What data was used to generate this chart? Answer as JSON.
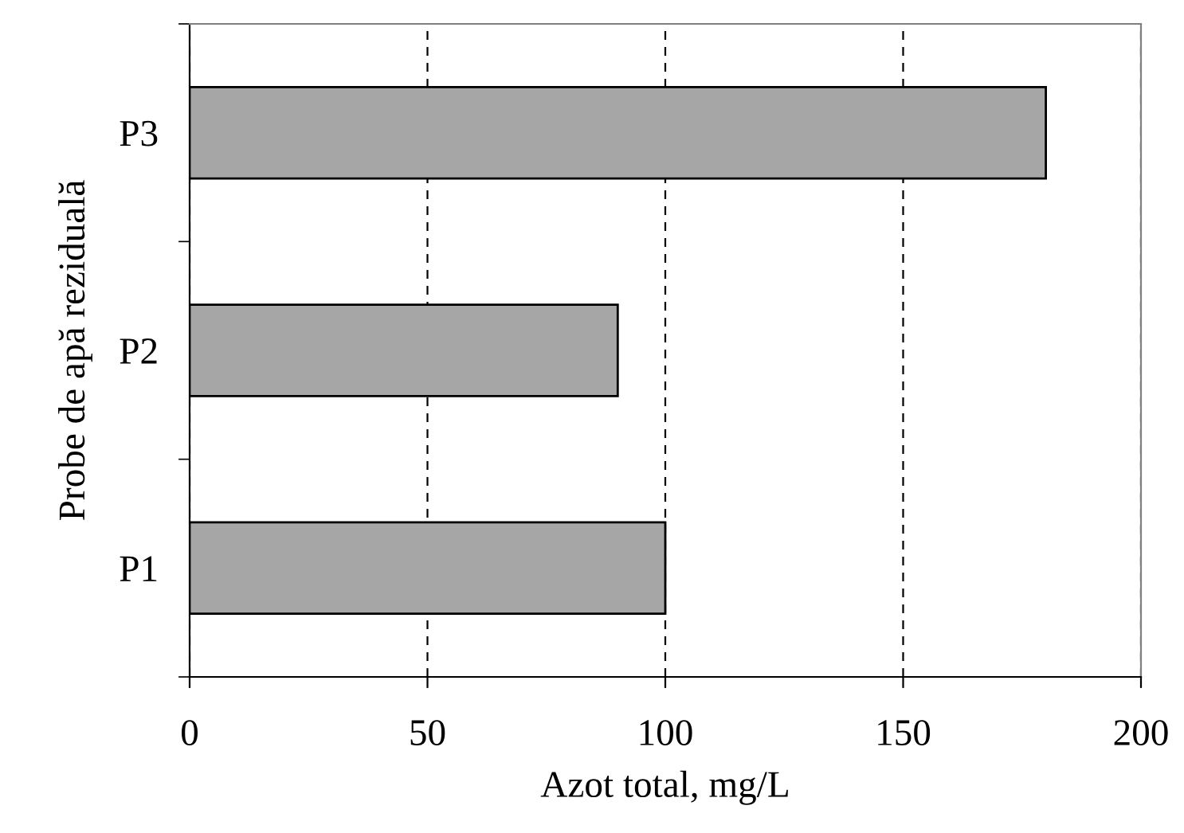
{
  "chart_data": {
    "type": "bar",
    "orientation": "horizontal",
    "categories": [
      "P3",
      "P2",
      "P1"
    ],
    "values": [
      180,
      90,
      100
    ],
    "color": "#a6a6a6",
    "xlim": [
      0,
      200
    ],
    "xticks": [
      0,
      50,
      100,
      150,
      200
    ],
    "grid": "x",
    "xlabel": "Azot total, mg/L",
    "ylabel": "Probe de apă reziduală"
  }
}
